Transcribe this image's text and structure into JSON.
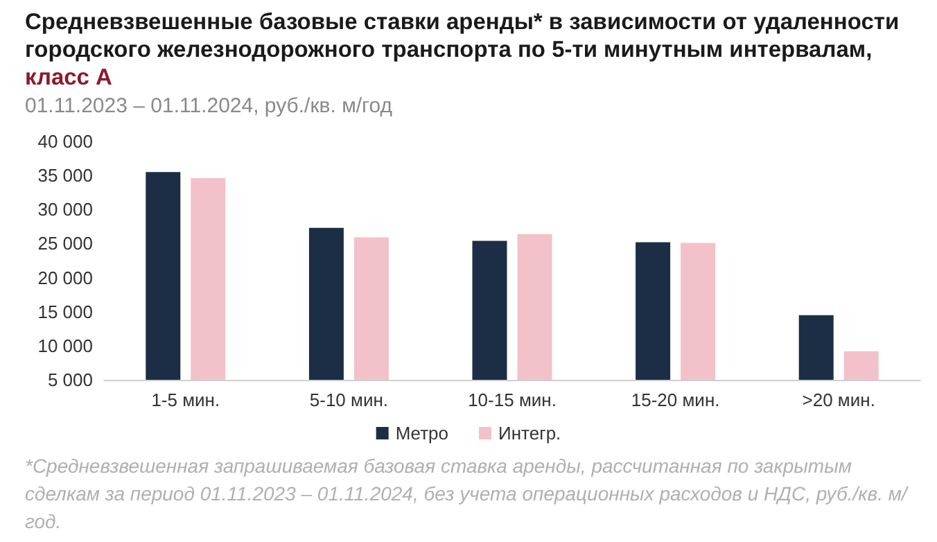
{
  "chart_data": {
    "type": "bar",
    "title": "Средневзвешенные базовые ставки аренды* в зависимости от удаленности городского железнодорожного транспорта по 5-ти минутным интервалам, класс А",
    "subtitle": "01.11.2023 – 01.11.2024, руб./кв. м/год",
    "categories": [
      "1-5 мин.",
      "5-10 мин.",
      "10-15 мин.",
      "15-20 мин.",
      ">20 мин."
    ],
    "series": [
      {
        "name": "Метро",
        "color": "#1b2e45",
        "values": [
          35500,
          27300,
          25400,
          25200,
          14500
        ]
      },
      {
        "name": "Интегр.",
        "color": "#f2c1c9",
        "values": [
          34600,
          25900,
          26400,
          25100,
          9200
        ]
      }
    ],
    "ylim": [
      5000,
      40000
    ],
    "yticks": [
      {
        "value": 5000,
        "label": "5 000"
      },
      {
        "value": 10000,
        "label": "10 000"
      },
      {
        "value": 15000,
        "label": "15 000"
      },
      {
        "value": 20000,
        "label": "20 000"
      },
      {
        "value": 25000,
        "label": "25 000"
      },
      {
        "value": 30000,
        "label": "30 000"
      },
      {
        "value": 35000,
        "label": "35 000"
      },
      {
        "value": 40000,
        "label": "40 000"
      }
    ],
    "grid": false,
    "legend": "bottom",
    "annotations": [
      "*Средневзвешенная запрашиваемая базовая ставка аренды, рассчитанная по закрытым сделкам за период 01.11.2023 – 01.11.2024, без учета операционных расходов и НДС, руб./кв. м/год."
    ]
  }
}
